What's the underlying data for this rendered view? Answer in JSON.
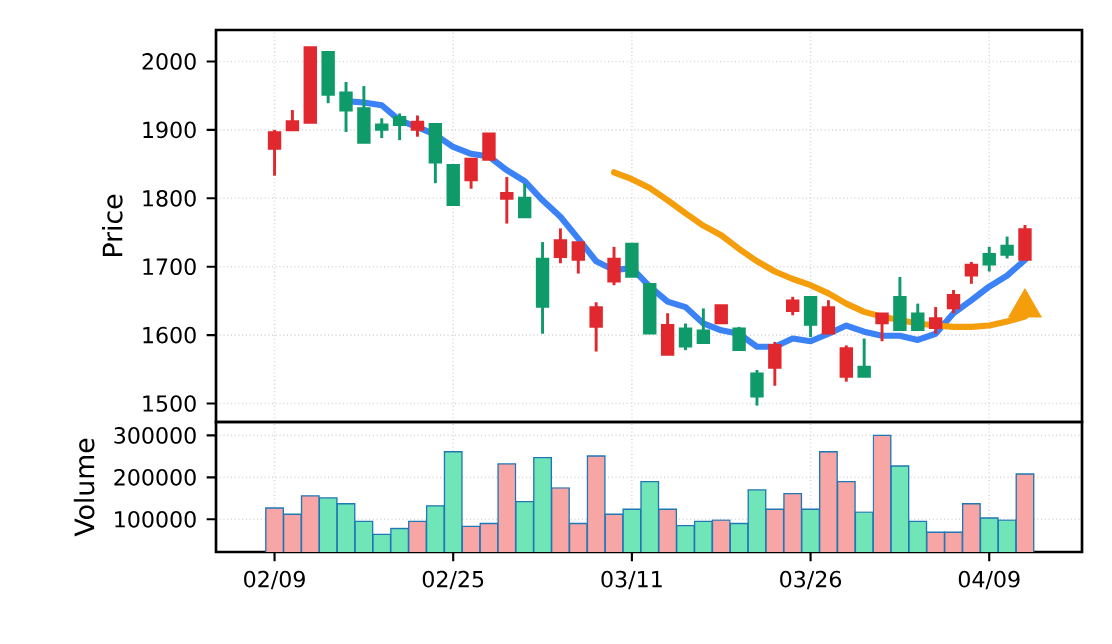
{
  "chart_data": [
    {
      "type": "candlestick",
      "ylabel": "Price",
      "categories": [
        null,
        null,
        null,
        null,
        null,
        null,
        null,
        null,
        null,
        null,
        null,
        null,
        null,
        null,
        null,
        null,
        null,
        null,
        null,
        null,
        null,
        null,
        null,
        null,
        null,
        null,
        null,
        null,
        null,
        null,
        null,
        null,
        null,
        null,
        null,
        null,
        null,
        null,
        null,
        null,
        null,
        null,
        null
      ],
      "ohlc": [
        [
          1872,
          1900,
          1833,
          1897
        ],
        [
          1899,
          1929,
          1899,
          1913
        ],
        [
          1910,
          2021,
          1910,
          2021
        ],
        [
          2014,
          2014,
          1939,
          1951
        ],
        [
          1955,
          1970,
          1897,
          1928
        ],
        [
          1932,
          1964,
          1881,
          1881
        ],
        [
          1908,
          1917,
          1888,
          1900
        ],
        [
          1919,
          1924,
          1885,
          1907
        ],
        [
          1900,
          1921,
          1890,
          1912
        ],
        [
          1909,
          1909,
          1822,
          1852
        ],
        [
          1849,
          1849,
          1790,
          1790
        ],
        [
          1826,
          1858,
          1814,
          1858
        ],
        [
          1856,
          1895,
          1856,
          1895
        ],
        [
          1799,
          1831,
          1763,
          1808
        ],
        [
          1801,
          1821,
          1772,
          1772
        ],
        [
          1712,
          1736,
          1602,
          1641
        ],
        [
          1714,
          1756,
          1705,
          1739
        ],
        [
          1710,
          1736,
          1690,
          1736
        ],
        [
          1612,
          1648,
          1576,
          1641
        ],
        [
          1678,
          1729,
          1673,
          1712
        ],
        [
          1734,
          1734,
          1685,
          1685
        ],
        [
          1675,
          1675,
          1602,
          1602
        ],
        [
          1571,
          1632,
          1571,
          1615
        ],
        [
          1610,
          1617,
          1578,
          1583
        ],
        [
          1607,
          1639,
          1588,
          1588
        ],
        [
          1617,
          1644,
          1617,
          1644
        ],
        [
          1610,
          1612,
          1578,
          1578
        ],
        [
          1544,
          1549,
          1497,
          1510
        ],
        [
          1552,
          1590,
          1526,
          1586
        ],
        [
          1635,
          1656,
          1629,
          1651
        ],
        [
          1656,
          1656,
          1597,
          1615
        ],
        [
          1602,
          1651,
          1602,
          1641
        ],
        [
          1539,
          1585,
          1532,
          1581
        ],
        [
          1554,
          1595,
          1539,
          1539
        ],
        [
          1617,
          1632,
          1591,
          1632
        ],
        [
          1656,
          1685,
          1607,
          1607
        ],
        [
          1632,
          1646,
          1607,
          1607
        ],
        [
          1610,
          1641,
          1602,
          1625
        ],
        [
          1639,
          1666,
          1632,
          1659
        ],
        [
          1687,
          1707,
          1675,
          1703
        ],
        [
          1719,
          1729,
          1693,
          1703
        ],
        [
          1731,
          1744,
          1712,
          1717
        ],
        [
          1710,
          1761,
          1710,
          1755
        ]
      ],
      "colors": [
        "#e0282e",
        "#e0282e",
        "#e0282e",
        "#0f9a6a",
        "#0f9a6a",
        "#0f9a6a",
        "#0f9a6a",
        "#0f9a6a",
        "#e0282e",
        "#0f9a6a",
        "#0f9a6a",
        "#e0282e",
        "#e0282e",
        "#e0282e",
        "#0f9a6a",
        "#0f9a6a",
        "#e0282e",
        "#e0282e",
        "#e0282e",
        "#e0282e",
        "#0f9a6a",
        "#0f9a6a",
        "#e0282e",
        "#0f9a6a",
        "#0f9a6a",
        "#e0282e",
        "#0f9a6a",
        "#0f9a6a",
        "#e0282e",
        "#e0282e",
        "#0f9a6a",
        "#e0282e",
        "#e0282e",
        "#0f9a6a",
        "#e0282e",
        "#0f9a6a",
        "#0f9a6a",
        "#e0282e",
        "#e0282e",
        "#e0282e",
        "#0f9a6a",
        "#0f9a6a",
        "#e0282e"
      ],
      "series": [
        {
          "type": "line",
          "color": "#3b82f6",
          "values": [
            null,
            null,
            null,
            null,
            1942,
            1940,
            1936,
            1914,
            1904,
            1893,
            1875,
            1865,
            1861,
            1841,
            1825,
            1797,
            1773,
            1741,
            1708,
            1695,
            1698,
            1671,
            1649,
            1641,
            1617,
            1607,
            1602,
            1583,
            1583,
            1595,
            1591,
            1602,
            1614,
            1605,
            1599,
            1599,
            1593,
            1602,
            1632,
            1651,
            1671,
            1687,
            1710
          ]
        },
        {
          "type": "line",
          "color": "#f59e0b",
          "values": [
            null,
            null,
            null,
            null,
            null,
            null,
            null,
            null,
            null,
            null,
            null,
            null,
            null,
            null,
            null,
            null,
            null,
            null,
            null,
            1838,
            1828,
            1815,
            1797,
            1778,
            1760,
            1746,
            1726,
            1708,
            1693,
            1682,
            1673,
            1661,
            1646,
            1634,
            1627,
            1622,
            1617,
            1614,
            1612,
            1612,
            1614,
            1620,
            1627
          ]
        },
        {
          "type": "scatter",
          "color": "#f59e0b",
          "marker": "triangle",
          "values": [
            null,
            null,
            null,
            null,
            null,
            null,
            null,
            null,
            null,
            null,
            null,
            null,
            null,
            null,
            null,
            null,
            null,
            null,
            null,
            null,
            null,
            null,
            null,
            null,
            null,
            null,
            null,
            null,
            null,
            null,
            null,
            null,
            null,
            null,
            null,
            null,
            null,
            null,
            null,
            null,
            null,
            null,
            1640
          ]
        }
      ],
      "ylim": [
        1473,
        2046
      ],
      "yticks": [
        1500,
        1600,
        1700,
        1800,
        1900,
        2000
      ],
      "grid": true,
      "tick_labels": "y"
    },
    {
      "type": "bar",
      "ylabel": "Volume",
      "categories": [
        "02/09",
        null,
        null,
        null,
        null,
        null,
        null,
        null,
        null,
        null,
        "02/25",
        null,
        null,
        null,
        null,
        null,
        null,
        null,
        null,
        null,
        "03/11",
        null,
        null,
        null,
        null,
        null,
        null,
        null,
        null,
        null,
        "03/26",
        null,
        null,
        null,
        null,
        null,
        null,
        null,
        null,
        null,
        "04/09",
        null,
        null
      ],
      "values": [
        127000,
        112000,
        156000,
        151000,
        137000,
        95000,
        64000,
        78000,
        95000,
        132000,
        261000,
        83000,
        90000,
        232000,
        142000,
        247000,
        175000,
        90000,
        251000,
        112000,
        124000,
        190000,
        124000,
        85000,
        95000,
        98000,
        90000,
        170000,
        124000,
        161000,
        124000,
        261000,
        190000,
        117000,
        300000,
        227000,
        95000,
        69000,
        69000,
        137000,
        103000,
        98000,
        208000
      ],
      "colors": [
        "#f8a5a5",
        "#f8a5a5",
        "#f8a5a5",
        "#70e6b8",
        "#70e6b8",
        "#70e6b8",
        "#70e6b8",
        "#70e6b8",
        "#f8a5a5",
        "#70e6b8",
        "#70e6b8",
        "#f8a5a5",
        "#f8a5a5",
        "#f8a5a5",
        "#70e6b8",
        "#70e6b8",
        "#f8a5a5",
        "#f8a5a5",
        "#f8a5a5",
        "#f8a5a5",
        "#70e6b8",
        "#70e6b8",
        "#f8a5a5",
        "#70e6b8",
        "#70e6b8",
        "#f8a5a5",
        "#70e6b8",
        "#70e6b8",
        "#f8a5a5",
        "#f8a5a5",
        "#70e6b8",
        "#f8a5a5",
        "#f8a5a5",
        "#70e6b8",
        "#f8a5a5",
        "#70e6b8",
        "#70e6b8",
        "#f8a5a5",
        "#f8a5a5",
        "#f8a5a5",
        "#70e6b8",
        "#70e6b8",
        "#f8a5a5"
      ],
      "ylim": [
        22000,
        332000
      ],
      "yticks": [
        100000,
        200000,
        300000
      ],
      "grid": true
    }
  ]
}
